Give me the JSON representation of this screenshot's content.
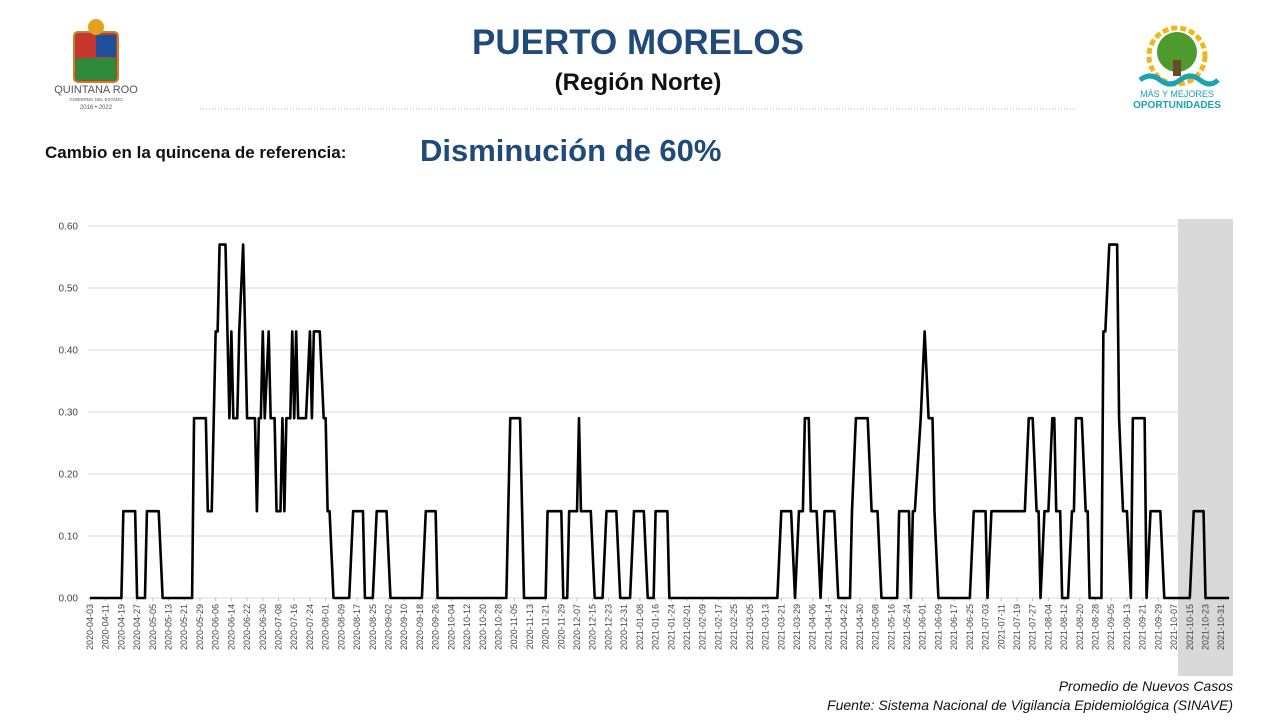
{
  "header": {
    "title": "PUERTO MORELOS",
    "subtitle": "(Región Norte)",
    "change_label": "Cambio en la quincena de referencia:",
    "change_value": "Disminución de 60%",
    "logo_left": {
      "name": "QUINTANA ROO",
      "line2": "GOBIERNO DEL ESTADO",
      "line3": "2016 • 2022"
    },
    "logo_right": {
      "line1": "MÁS Y MEJORES",
      "line2": "OPORTUNIDADES"
    }
  },
  "chart_data": {
    "type": "line",
    "x": [
      "2020-04-03",
      "2020-04-19",
      "2020-04-20",
      "2020-04-26",
      "2020-04-27",
      "2020-05-01",
      "2020-05-02",
      "2020-05-08",
      "2020-05-10",
      "2020-05-25",
      "2020-05-26",
      "2020-06-01",
      "2020-06-02",
      "2020-06-04",
      "2020-06-06",
      "2020-06-07",
      "2020-06-08",
      "2020-06-11",
      "2020-06-12",
      "2020-06-13",
      "2020-06-14",
      "2020-06-15",
      "2020-06-17",
      "2020-06-18",
      "2020-06-20",
      "2020-06-21",
      "2020-06-22",
      "2020-06-26",
      "2020-06-27",
      "2020-06-28",
      "2020-06-29",
      "2020-06-30",
      "2020-07-01",
      "2020-07-03",
      "2020-07-04",
      "2020-07-06",
      "2020-07-07",
      "2020-07-09",
      "2020-07-10",
      "2020-07-11",
      "2020-07-12",
      "2020-07-14",
      "2020-07-15",
      "2020-07-16",
      "2020-07-17",
      "2020-07-18",
      "2020-07-22",
      "2020-07-24",
      "2020-07-25",
      "2020-07-26",
      "2020-07-29",
      "2020-07-31",
      "2020-08-01",
      "2020-08-02",
      "2020-08-03",
      "2020-08-05",
      "2020-08-13",
      "2020-08-15",
      "2020-08-20",
      "2020-08-21",
      "2020-08-25",
      "2020-08-27",
      "2020-09-01",
      "2020-09-03",
      "2020-09-19",
      "2020-09-21",
      "2020-09-26",
      "2020-09-27",
      "2020-11-01",
      "2020-11-03",
      "2020-11-08",
      "2020-11-10",
      "2020-11-21",
      "2020-11-22",
      "2020-11-29",
      "2020-11-30",
      "2020-12-02",
      "2020-12-03",
      "2020-12-07",
      "2020-12-08",
      "2020-12-09",
      "2020-12-14",
      "2020-12-16",
      "2020-12-20",
      "2020-12-22",
      "2020-12-27",
      "2020-12-29",
      "2021-01-03",
      "2021-01-05",
      "2021-01-10",
      "2021-01-12",
      "2021-01-15",
      "2021-01-16",
      "2021-01-22",
      "2021-01-23",
      "2021-03-19",
      "2021-03-21",
      "2021-03-26",
      "2021-03-28",
      "2021-03-30",
      "2021-04-01",
      "2021-04-02",
      "2021-04-04",
      "2021-04-05",
      "2021-04-08",
      "2021-04-10",
      "2021-04-12",
      "2021-04-17",
      "2021-04-19",
      "2021-04-25",
      "2021-04-26",
      "2021-04-28",
      "2021-05-04",
      "2021-05-06",
      "2021-05-09",
      "2021-05-11",
      "2021-05-19",
      "2021-05-20",
      "2021-05-25",
      "2021-05-26",
      "2021-05-27",
      "2021-05-28",
      "2021-05-31",
      "2021-06-02",
      "2021-06-04",
      "2021-06-06",
      "2021-06-07",
      "2021-06-09",
      "2021-06-25",
      "2021-06-27",
      "2021-07-03",
      "2021-07-04",
      "2021-07-06",
      "2021-07-23",
      "2021-07-25",
      "2021-07-27",
      "2021-07-29",
      "2021-07-30",
      "2021-07-31",
      "2021-08-02",
      "2021-08-04",
      "2021-08-06",
      "2021-08-07",
      "2021-08-08",
      "2021-08-10",
      "2021-08-11",
      "2021-08-14",
      "2021-08-16",
      "2021-08-17",
      "2021-08-18",
      "2021-08-21",
      "2021-08-23",
      "2021-08-24",
      "2021-08-25",
      "2021-08-31",
      "2021-09-01",
      "2021-09-02",
      "2021-09-04",
      "2021-09-08",
      "2021-09-09",
      "2021-09-11",
      "2021-09-13",
      "2021-09-15",
      "2021-09-16",
      "2021-09-22",
      "2021-09-23",
      "2021-09-25",
      "2021-09-30",
      "2021-10-02",
      "2021-10-15",
      "2021-10-17",
      "2021-10-22",
      "2021-10-23",
      "2021-11-04"
    ],
    "series": [
      {
        "name": "Promedio de Nuevos Casos",
        "color": "#000000",
        "values": [
          0,
          0,
          0.14,
          0.14,
          0,
          0,
          0.14,
          0.14,
          0,
          0,
          0.29,
          0.29,
          0.14,
          0.14,
          0.43,
          0.43,
          0.57,
          0.57,
          0.43,
          0.29,
          0.43,
          0.29,
          0.29,
          0.43,
          0.57,
          0.43,
          0.29,
          0.29,
          0.14,
          0.29,
          0.29,
          0.43,
          0.29,
          0.43,
          0.29,
          0.29,
          0.14,
          0.14,
          0.29,
          0.14,
          0.29,
          0.29,
          0.43,
          0.29,
          0.43,
          0.29,
          0.29,
          0.43,
          0.29,
          0.43,
          0.43,
          0.29,
          0.29,
          0.14,
          0.14,
          0,
          0,
          0.14,
          0.14,
          0,
          0,
          0.14,
          0.14,
          0,
          0,
          0.14,
          0.14,
          0,
          0,
          0.29,
          0.29,
          0,
          0,
          0.14,
          0.14,
          0,
          0,
          0.14,
          0.14,
          0.29,
          0.14,
          0.14,
          0,
          0,
          0.14,
          0.14,
          0,
          0,
          0.14,
          0.14,
          0,
          0,
          0.14,
          0.14,
          0,
          0,
          0.14,
          0.14,
          0,
          0.14,
          0.14,
          0.29,
          0.29,
          0.14,
          0.14,
          0,
          0.14,
          0.14,
          0,
          0,
          0.14,
          0.29,
          0.29,
          0.14,
          0.14,
          0,
          0,
          0.14,
          0.14,
          0,
          0.14,
          0.14,
          0.29,
          0.43,
          0.29,
          0.29,
          0.14,
          0,
          0,
          0.14,
          0.14,
          0,
          0.14,
          0.14,
          0.29,
          0.29,
          0.14,
          0.14,
          0,
          0.14,
          0.14,
          0.29,
          0.29,
          0.14,
          0.14,
          0,
          0,
          0.14,
          0.14,
          0.29,
          0.29,
          0.14,
          0.14,
          0,
          0,
          0.43,
          0.43,
          0.57,
          0.57,
          0.29,
          0.14,
          0.14,
          0,
          0.29,
          0.29,
          0,
          0.14,
          0.14,
          0,
          0,
          0.14,
          0.14,
          0,
          0
        ]
      }
    ],
    "xlim": [
      "2020-04-02",
      "2021-11-06"
    ],
    "xticks": [
      "2020-04-03",
      "2020-04-11",
      "2020-04-19",
      "2020-04-27",
      "2020-05-05",
      "2020-05-13",
      "2020-05-21",
      "2020-05-29",
      "2020-06-06",
      "2020-06-14",
      "2020-06-22",
      "2020-06-30",
      "2020-07-08",
      "2020-07-16",
      "2020-07-24",
      "2020-08-01",
      "2020-08-09",
      "2020-08-17",
      "2020-08-25",
      "2020-09-02",
      "2020-09-10",
      "2020-09-18",
      "2020-09-26",
      "2020-10-04",
      "2020-10-12",
      "2020-10-20",
      "2020-10-28",
      "2020-11-05",
      "2020-11-13",
      "2020-11-21",
      "2020-11-29",
      "2020-12-07",
      "2020-12-15",
      "2020-12-23",
      "2020-12-31",
      "2021-01-08",
      "2021-01-16",
      "2021-01-24",
      "2021-02-01",
      "2021-02-09",
      "2021-02-17",
      "2021-02-25",
      "2021-03-05",
      "2021-03-13",
      "2021-03-21",
      "2021-03-29",
      "2021-04-06",
      "2021-04-14",
      "2021-04-22",
      "2021-04-30",
      "2021-05-08",
      "2021-05-16",
      "2021-05-24",
      "2021-06-01",
      "2021-06-09",
      "2021-06-17",
      "2021-06-25",
      "2021-07-03",
      "2021-07-11",
      "2021-07-19",
      "2021-07-27",
      "2021-08-04",
      "2021-08-12",
      "2021-08-20",
      "2021-08-28",
      "2021-09-05",
      "2021-09-13",
      "2021-09-21",
      "2021-09-29",
      "2021-10-07",
      "2021-10-15",
      "2021-10-23",
      "2021-10-31"
    ],
    "ylim": [
      0,
      0.6
    ],
    "yticks": [
      {
        "value": 0,
        "label": "0.00"
      },
      {
        "value": 0.1,
        "label": "0.10"
      },
      {
        "value": 0.2,
        "label": "0.20"
      },
      {
        "value": 0.3,
        "label": "0.30"
      },
      {
        "value": 0.4,
        "label": "0.40"
      },
      {
        "value": 0.5,
        "label": "0.50"
      },
      {
        "value": 0.6,
        "label": "0.60"
      }
    ],
    "grid": true,
    "highlight": [
      "2021-10-09",
      "2021-11-06"
    ],
    "highlight_color": "#d9d9d9",
    "source": "Fuente: Sistema Nacional de Vigilancia Epidemiológica (SINAVE)"
  }
}
